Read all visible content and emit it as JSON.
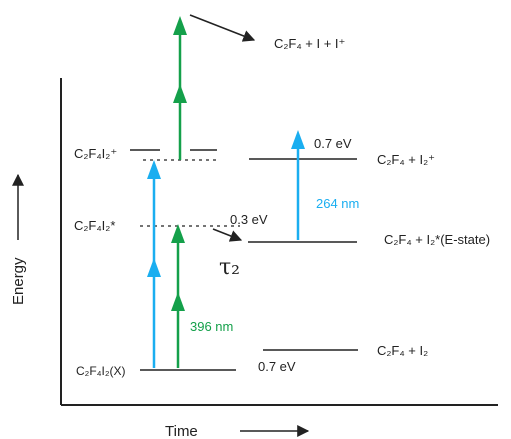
{
  "colors": {
    "green": "#14a04a",
    "blue": "#1aaef0",
    "line": "#222222"
  },
  "axes": {
    "y_label": "Energy",
    "x_label": "Time"
  },
  "states": {
    "ground": "C₂F₄I₂(X)",
    "excited": "C₂F₄I₂*",
    "ion": "C₂F₄I₂⁺",
    "product_ground": "C₂F₄ + I₂",
    "product_e_state": "C₂F₄ + I₂*(E-state)",
    "product_ion": "C₂F₄ + I₂⁺",
    "fragments": "C₂F₄ + I + I⁺"
  },
  "energies": {
    "ground_gap": "0.7 eV",
    "excited_gap": "0.3 eV",
    "ion_gap": "0.7 eV"
  },
  "wavelengths": {
    "pump": "396 nm",
    "probe": "264 nm"
  },
  "lifetime": "τ₂"
}
